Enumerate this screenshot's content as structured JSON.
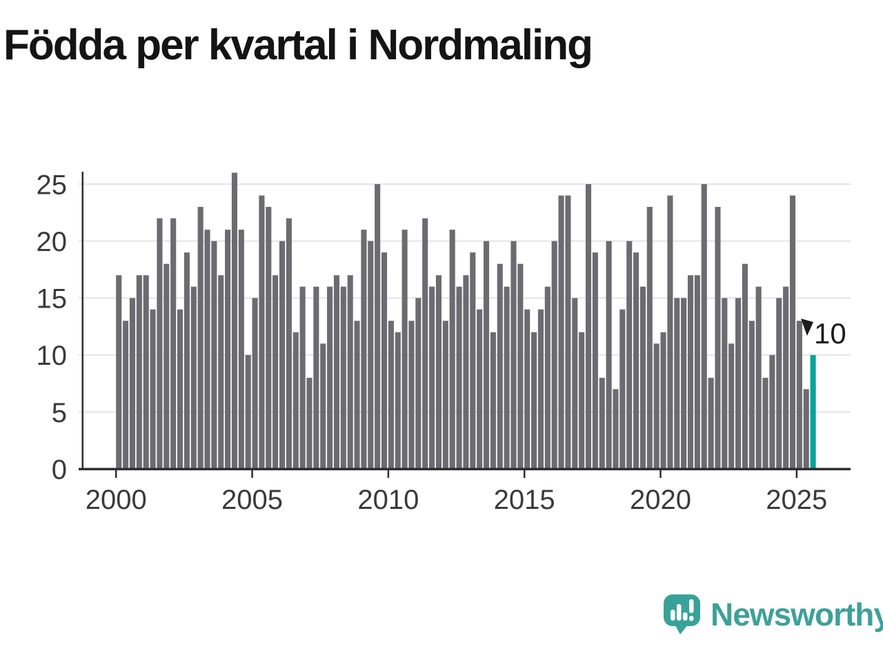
{
  "title": "Födda per kvartal i Nordmaling",
  "colors": {
    "background": "#ffffff",
    "bar": "#6b6b71",
    "highlight": "#0ba29b",
    "grid": "#e4e4e6",
    "axis": "#2e2e2e",
    "tick_label": "#3a3a3a",
    "title_color": "#141414",
    "annotation": "#1c1c1c",
    "logo": "#3ea09a"
  },
  "logo": {
    "wordmark": "Newsworthy"
  },
  "chart_data": {
    "type": "bar",
    "title": "Födda per kvartal i Nordmaling",
    "xlabel": "",
    "ylabel": "",
    "x_unit": "quarter",
    "start": "2000-Q1",
    "end": "2025-Q3",
    "grid": "horizontal",
    "legend": "none",
    "ylim": [
      0,
      26
    ],
    "y_ticks": [
      0,
      5,
      10,
      15,
      20,
      25
    ],
    "x_tick_labels": [
      "2000",
      "2005",
      "2010",
      "2015",
      "2020",
      "2025"
    ],
    "categories": [
      "2000Q1",
      "2000Q2",
      "2000Q3",
      "2000Q4",
      "2001Q1",
      "2001Q2",
      "2001Q3",
      "2001Q4",
      "2002Q1",
      "2002Q2",
      "2002Q3",
      "2002Q4",
      "2003Q1",
      "2003Q2",
      "2003Q3",
      "2003Q4",
      "2004Q1",
      "2004Q2",
      "2004Q3",
      "2004Q4",
      "2005Q1",
      "2005Q2",
      "2005Q3",
      "2005Q4",
      "2006Q1",
      "2006Q2",
      "2006Q3",
      "2006Q4",
      "2007Q1",
      "2007Q2",
      "2007Q3",
      "2007Q4",
      "2008Q1",
      "2008Q2",
      "2008Q3",
      "2008Q4",
      "2009Q1",
      "2009Q2",
      "2009Q3",
      "2009Q4",
      "2010Q1",
      "2010Q2",
      "2010Q3",
      "2010Q4",
      "2011Q1",
      "2011Q2",
      "2011Q3",
      "2011Q4",
      "2012Q1",
      "2012Q2",
      "2012Q3",
      "2012Q4",
      "2013Q1",
      "2013Q2",
      "2013Q3",
      "2013Q4",
      "2014Q1",
      "2014Q2",
      "2014Q3",
      "2014Q4",
      "2015Q1",
      "2015Q2",
      "2015Q3",
      "2015Q4",
      "2016Q1",
      "2016Q2",
      "2016Q3",
      "2016Q4",
      "2017Q1",
      "2017Q2",
      "2017Q3",
      "2017Q4",
      "2018Q1",
      "2018Q2",
      "2018Q3",
      "2018Q4",
      "2019Q1",
      "2019Q2",
      "2019Q3",
      "2019Q4",
      "2020Q1",
      "2020Q2",
      "2020Q3",
      "2020Q4",
      "2021Q1",
      "2021Q2",
      "2021Q3",
      "2021Q4",
      "2022Q1",
      "2022Q2",
      "2022Q3",
      "2022Q4",
      "2023Q1",
      "2023Q2",
      "2023Q3",
      "2023Q4",
      "2024Q1",
      "2024Q2",
      "2024Q3",
      "2024Q4",
      "2025Q1",
      "2025Q2",
      "2025Q3"
    ],
    "values": [
      17,
      13,
      15,
      17,
      17,
      14,
      22,
      18,
      22,
      14,
      19,
      16,
      23,
      21,
      20,
      17,
      21,
      26,
      21,
      10,
      15,
      24,
      23,
      17,
      20,
      22,
      12,
      16,
      8,
      16,
      11,
      16,
      17,
      16,
      17,
      13,
      21,
      20,
      25,
      19,
      13,
      12,
      21,
      13,
      15,
      22,
      16,
      17,
      13,
      21,
      16,
      17,
      19,
      14,
      20,
      12,
      18,
      16,
      20,
      18,
      14,
      12,
      14,
      16,
      20,
      24,
      24,
      15,
      12,
      25,
      19,
      8,
      20,
      7,
      14,
      20,
      19,
      16,
      23,
      11,
      12,
      24,
      15,
      15,
      17,
      17,
      25,
      8,
      23,
      15,
      11,
      15,
      18,
      13,
      16,
      8,
      10,
      15,
      16,
      24,
      13,
      7,
      10
    ],
    "highlight_index": 102,
    "annotation": {
      "label": "10",
      "index": 102
    }
  }
}
